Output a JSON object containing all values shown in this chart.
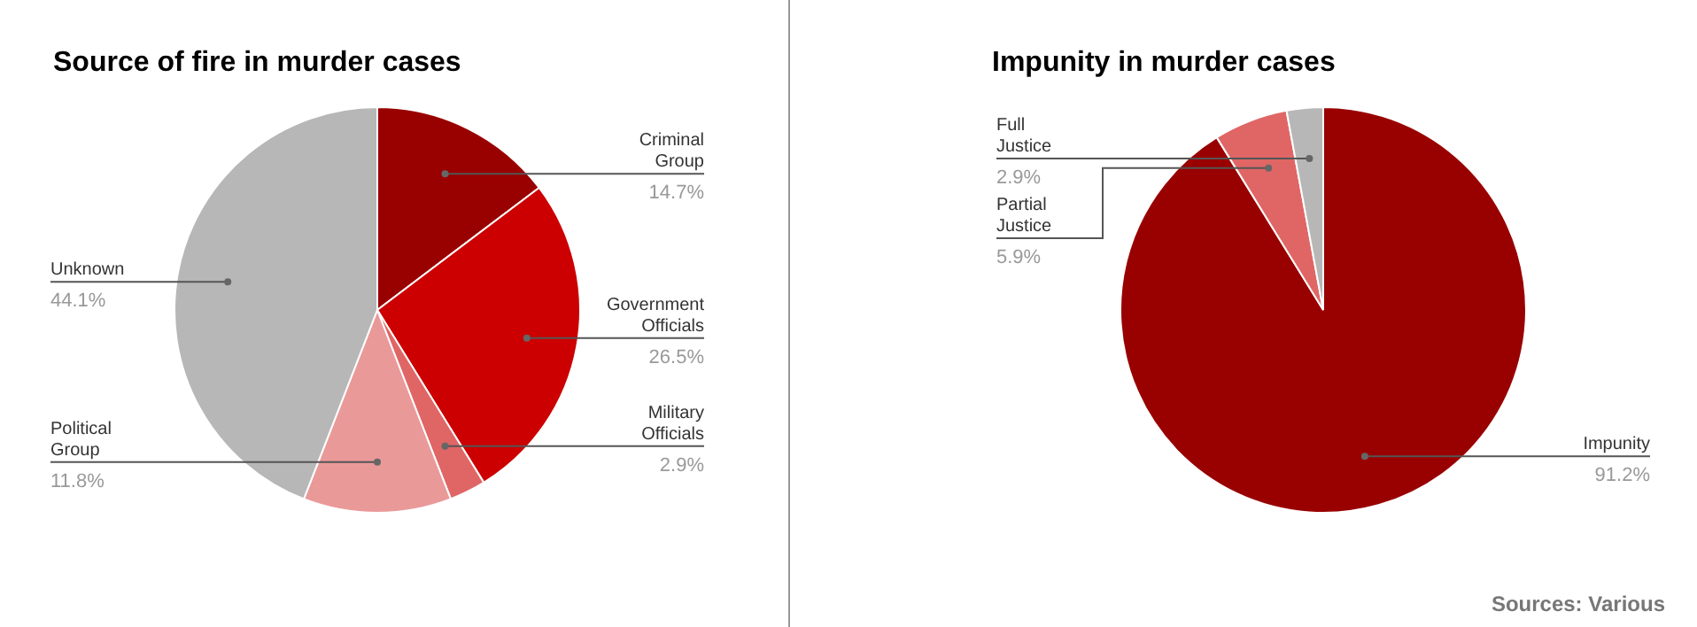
{
  "chart_data": [
    {
      "type": "pie",
      "title": "Source of fire in murder cases",
      "categories": [
        "Criminal Group",
        "Government Officials",
        "Military Officials",
        "Political Group",
        "Unknown"
      ],
      "values": [
        14.7,
        26.5,
        2.9,
        11.8,
        44.1
      ],
      "colors": [
        "#990000",
        "#cc0000",
        "#e06666",
        "#ea9999",
        "#b7b7b7"
      ],
      "value_labels": [
        "14.7%",
        "26.5%",
        "2.9%",
        "11.8%",
        "44.1%"
      ],
      "legend": false
    },
    {
      "type": "pie",
      "title": "Impunity in murder cases",
      "categories": [
        "Impunity",
        "Partial Justice",
        "Full Justice"
      ],
      "values": [
        91.2,
        5.9,
        2.9
      ],
      "colors": [
        "#990000",
        "#e06666",
        "#b7b7b7"
      ],
      "value_labels": [
        "91.2%",
        "5.9%",
        "2.9%"
      ],
      "legend": false,
      "annotations": [
        "Sources: Various"
      ]
    }
  ]
}
